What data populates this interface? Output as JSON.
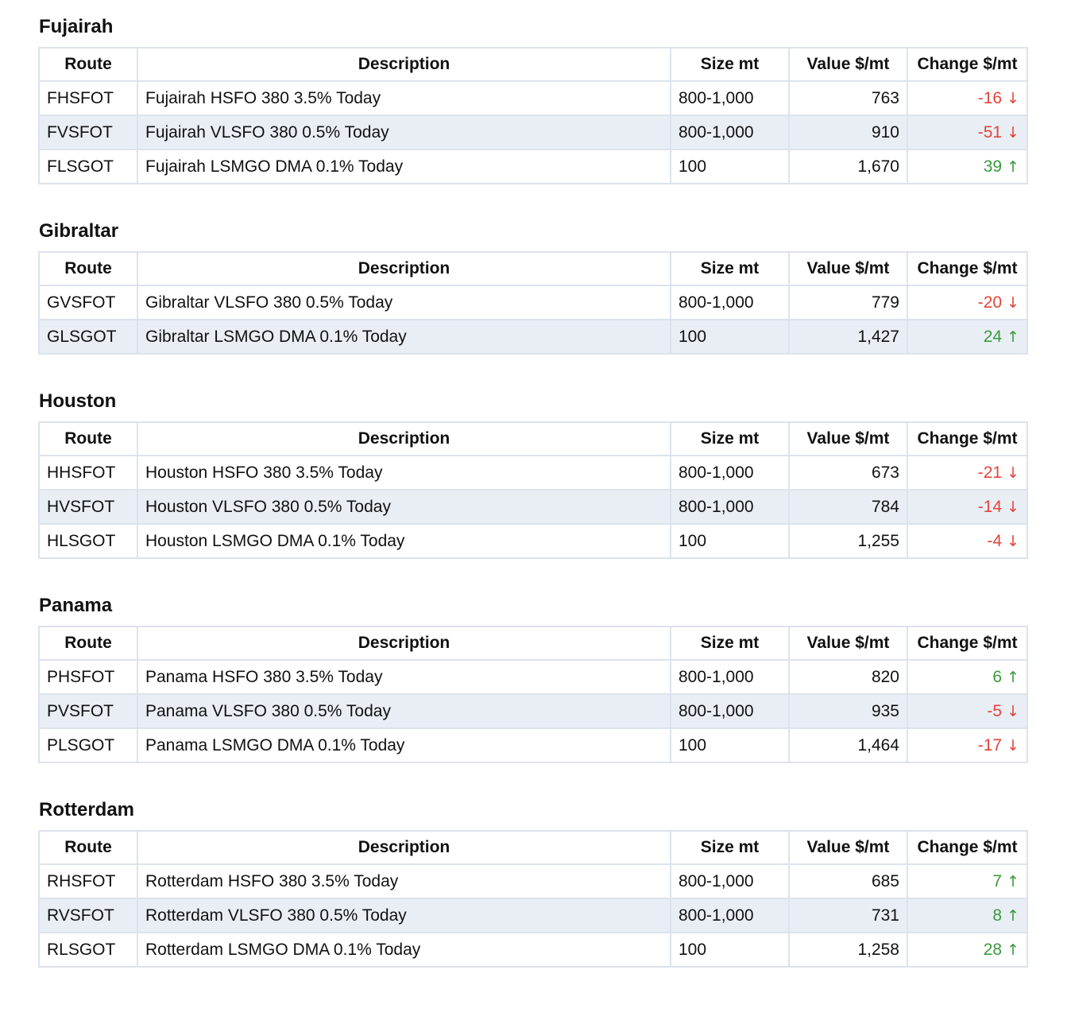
{
  "columns": {
    "route": "Route",
    "description": "Description",
    "size": "Size mt",
    "value": "Value $/mt",
    "change": "Change $/mt"
  },
  "colors": {
    "up": "#3a9a3a",
    "down": "#e2453c",
    "stripe": "#e9eef5",
    "border": "#dde3ec"
  },
  "sections": [
    {
      "title": "Fujairah",
      "rows": [
        {
          "route": "FHSFOT",
          "description": "Fujairah HSFO 380 3.5% Today",
          "size": "800-1,000",
          "value": "763",
          "change": "-16",
          "direction": "down",
          "arrow": "↓"
        },
        {
          "route": "FVSFOT",
          "description": "Fujairah VLSFO 380 0.5% Today",
          "size": "800-1,000",
          "value": "910",
          "change": "-51",
          "direction": "down",
          "arrow": "↓"
        },
        {
          "route": "FLSGOT",
          "description": "Fujairah LSMGO DMA 0.1% Today",
          "size": "100",
          "value": "1,670",
          "change": "39",
          "direction": "up",
          "arrow": "↑"
        }
      ]
    },
    {
      "title": "Gibraltar",
      "rows": [
        {
          "route": "GVSFOT",
          "description": "Gibraltar VLSFO 380 0.5% Today",
          "size": "800-1,000",
          "value": "779",
          "change": "-20",
          "direction": "down",
          "arrow": "↓"
        },
        {
          "route": "GLSGOT",
          "description": "Gibraltar LSMGO DMA 0.1% Today",
          "size": "100",
          "value": "1,427",
          "change": "24",
          "direction": "up",
          "arrow": "↑"
        }
      ]
    },
    {
      "title": "Houston",
      "rows": [
        {
          "route": "HHSFOT",
          "description": "Houston HSFO 380 3.5% Today",
          "size": "800-1,000",
          "value": "673",
          "change": "-21",
          "direction": "down",
          "arrow": "↓"
        },
        {
          "route": "HVSFOT",
          "description": "Houston VLSFO 380 0.5% Today",
          "size": "800-1,000",
          "value": "784",
          "change": "-14",
          "direction": "down",
          "arrow": "↓"
        },
        {
          "route": "HLSGOT",
          "description": "Houston LSMGO DMA 0.1% Today",
          "size": "100",
          "value": "1,255",
          "change": "-4",
          "direction": "down",
          "arrow": "↓"
        }
      ]
    },
    {
      "title": "Panama",
      "rows": [
        {
          "route": "PHSFOT",
          "description": "Panama HSFO 380 3.5% Today",
          "size": "800-1,000",
          "value": "820",
          "change": "6",
          "direction": "up",
          "arrow": "↑"
        },
        {
          "route": "PVSFOT",
          "description": "Panama VLSFO 380 0.5% Today",
          "size": "800-1,000",
          "value": "935",
          "change": "-5",
          "direction": "down",
          "arrow": "↓"
        },
        {
          "route": "PLSGOT",
          "description": "Panama LSMGO DMA 0.1% Today",
          "size": "100",
          "value": "1,464",
          "change": "-17",
          "direction": "down",
          "arrow": "↓"
        }
      ]
    },
    {
      "title": "Rotterdam",
      "rows": [
        {
          "route": "RHSFOT",
          "description": "Rotterdam HSFO 380 3.5% Today",
          "size": "800-1,000",
          "value": "685",
          "change": "7",
          "direction": "up",
          "arrow": "↑"
        },
        {
          "route": "RVSFOT",
          "description": "Rotterdam VLSFO 380 0.5% Today",
          "size": "800-1,000",
          "value": "731",
          "change": "8",
          "direction": "up",
          "arrow": "↑"
        },
        {
          "route": "RLSGOT",
          "description": "Rotterdam LSMGO DMA 0.1% Today",
          "size": "100",
          "value": "1,258",
          "change": "28",
          "direction": "up",
          "arrow": "↑"
        }
      ]
    }
  ]
}
